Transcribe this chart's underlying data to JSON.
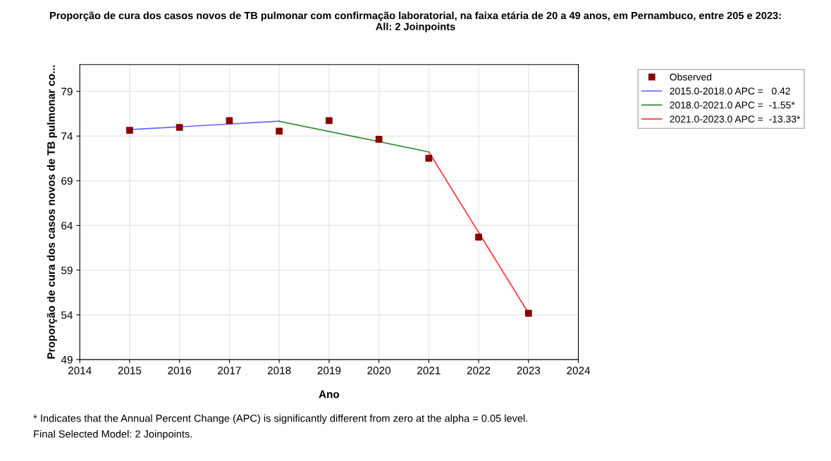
{
  "chart_data": {
    "type": "line",
    "title": "Proporção de cura dos casos novos de TB pulmonar com confirmação laboratorial, na faixa etária de 20 a 49 anos, em Pernambuco, entre 205 e 2023:\nAll: 2 Joinpoints",
    "xlabel": "Ano",
    "ylabel": "Proporção de cura dos casos novos de TB pulmonar co...",
    "xlim": [
      2014,
      2024
    ],
    "xticks": [
      2014,
      2015,
      2016,
      2017,
      2018,
      2019,
      2020,
      2021,
      2022,
      2023,
      2024
    ],
    "ylim": [
      49,
      82
    ],
    "yticks": [
      49,
      54,
      59,
      64,
      69,
      74,
      79
    ],
    "grid": true,
    "legend": "top right",
    "series": [
      {
        "name": "Observed",
        "type": "scatter",
        "marker": "square",
        "color": "#8b0000",
        "x": [
          2015,
          2016,
          2017,
          2018,
          2019,
          2020,
          2021,
          2022,
          2023
        ],
        "values": [
          74.65,
          74.97,
          75.73,
          74.54,
          75.73,
          73.64,
          71.51,
          62.7,
          54.18
        ]
      },
      {
        "name": "2015.0-2018.0 APC =   0.42",
        "color": "#6666ff",
        "x": [
          2015,
          2018
        ],
        "values": [
          74.72,
          75.66
        ]
      },
      {
        "name": "2018.0-2021.0 APC =  -1.55*",
        "color": "#2e8b2e",
        "x": [
          2018,
          2021
        ],
        "values": [
          75.66,
          72.23
        ]
      },
      {
        "name": "2021.0-2023.0 APC =  -13.33*",
        "color": "#ff3333",
        "x": [
          2021,
          2023
        ],
        "values": [
          72.23,
          54.2
        ]
      }
    ],
    "annotations": [
      "* Indicates that the Annual Percent Change (APC) is significantly different from zero at the alpha = 0.05 level.",
      "Final Selected Model: 2 Joinpoints."
    ]
  }
}
